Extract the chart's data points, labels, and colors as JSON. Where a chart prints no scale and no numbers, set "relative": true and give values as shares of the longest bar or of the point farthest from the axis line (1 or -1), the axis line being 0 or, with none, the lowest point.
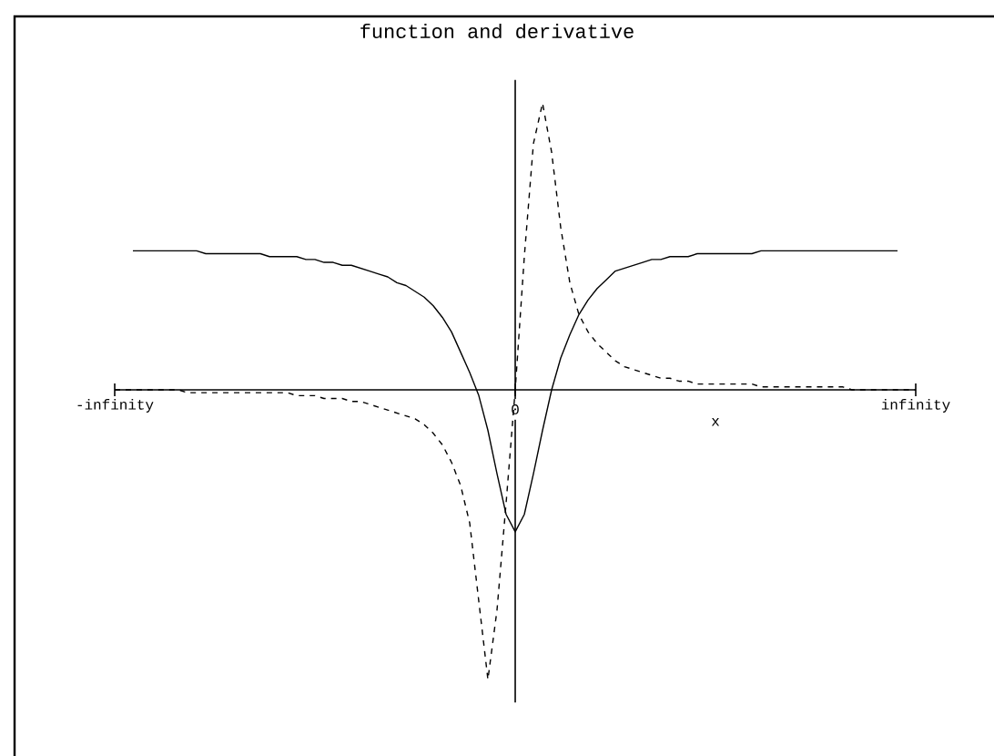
{
  "chart_data": {
    "type": "line",
    "title": "function and derivative",
    "xlabel": "x",
    "relative": true,
    "categories": [
      "-infinity",
      null,
      null,
      null,
      null,
      null,
      null,
      null,
      null,
      null,
      null,
      null,
      null,
      null,
      null,
      null,
      null,
      null,
      null,
      null,
      null,
      null,
      null,
      null,
      null,
      null,
      null,
      null,
      null,
      null,
      null,
      null,
      null,
      null,
      null,
      null,
      null,
      null,
      null,
      null,
      null,
      null,
      null,
      null,
      "0",
      null,
      null,
      null,
      null,
      null,
      null,
      null,
      null,
      null,
      null,
      null,
      null,
      null,
      null,
      null,
      null,
      null,
      null,
      null,
      null,
      null,
      null,
      null,
      null,
      null,
      null,
      null,
      null,
      null,
      null,
      null,
      null,
      null,
      null,
      null,
      null,
      null,
      null,
      null,
      null,
      null,
      null,
      null,
      "infinity"
    ],
    "series": [
      {
        "color": "#000000",
        "line_style": "solid",
        "values": [
          null,
          null,
          0.48,
          0.48,
          0.48,
          0.48,
          0.48,
          0.48,
          0.48,
          0.48,
          0.47,
          0.47,
          0.47,
          0.47,
          0.47,
          0.47,
          0.47,
          0.46,
          0.46,
          0.46,
          0.46,
          0.45,
          0.45,
          0.44,
          0.44,
          0.43,
          0.43,
          0.42,
          0.41,
          0.4,
          0.39,
          0.37,
          0.36,
          0.34,
          0.32,
          0.29,
          0.25,
          0.2,
          0.13,
          0.06,
          -0.02,
          -0.14,
          -0.29,
          -0.43,
          -0.49,
          -0.43,
          -0.29,
          -0.14,
          0,
          0.11,
          0.19,
          0.26,
          0.31,
          0.35,
          0.38,
          0.41,
          0.42,
          0.43,
          0.44,
          0.45,
          0.45,
          0.46,
          0.46,
          0.46,
          0.47,
          0.47,
          0.47,
          0.47,
          0.47,
          0.47,
          0.47,
          0.48,
          0.48,
          0.48,
          0.48,
          0.48,
          0.48,
          0.48,
          0.48,
          0.48,
          0.48,
          0.48,
          0.48,
          0.48,
          0.48,
          0.48,
          0.48,
          null,
          null
        ]
      },
      {
        "color": "#000000",
        "line_style": "dashed",
        "values": [
          0,
          0,
          0,
          0,
          0,
          0,
          0,
          0,
          -0.01,
          -0.01,
          -0.01,
          -0.01,
          -0.01,
          -0.01,
          -0.01,
          -0.01,
          -0.01,
          -0.01,
          -0.01,
          -0.01,
          -0.02,
          -0.02,
          -0.02,
          -0.03,
          -0.03,
          -0.03,
          -0.04,
          -0.04,
          -0.05,
          -0.06,
          -0.07,
          -0.08,
          -0.09,
          -0.1,
          -0.12,
          -0.15,
          -0.19,
          -0.25,
          -0.33,
          -0.46,
          -0.73,
          -1,
          -0.76,
          -0.39,
          0,
          0.46,
          0.85,
          0.99,
          0.82,
          0.56,
          0.37,
          0.26,
          0.2,
          0.16,
          0.13,
          0.1,
          0.08,
          0.07,
          0.06,
          0.05,
          0.04,
          0.04,
          0.03,
          0.03,
          0.02,
          0.02,
          0.02,
          0.02,
          0.02,
          0.02,
          0.02,
          0.01,
          0.01,
          0.01,
          0.01,
          0.01,
          0.01,
          0.01,
          0.01,
          0.01,
          0.01,
          0,
          0,
          0,
          0,
          0,
          0,
          0,
          0
        ]
      }
    ]
  }
}
